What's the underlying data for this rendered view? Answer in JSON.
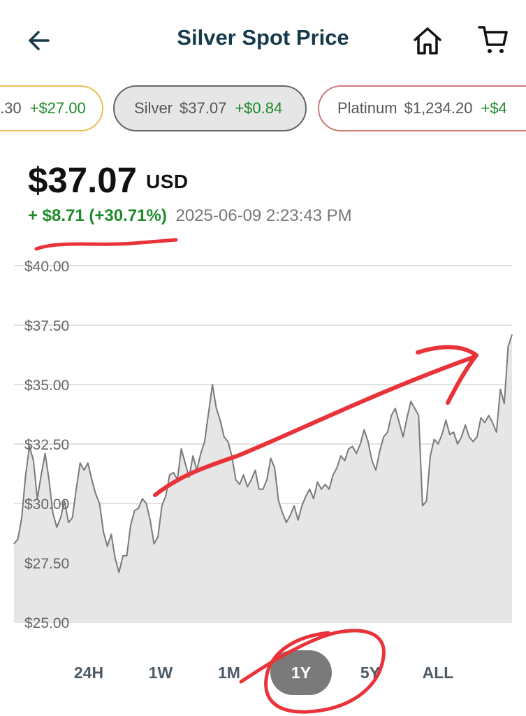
{
  "header": {
    "title": "Silver Spot Price",
    "back_icon": "arrow-left-icon",
    "home_icon": "home-icon",
    "cart_icon": "shopping-cart-icon"
  },
  "chips": [
    {
      "metal": "",
      "price": ".30",
      "change": "+$27.00",
      "border_color": "#e9c055"
    },
    {
      "metal": "Silver",
      "price": "$37.07",
      "change": "+$0.84",
      "border_color": "#666666",
      "selected": true
    },
    {
      "metal": "Platinum",
      "price": "$1,234.20",
      "change": "+$4",
      "border_color": "#c97b78"
    }
  ],
  "quote": {
    "price": "$37.07",
    "currency": "USD",
    "change_abs": "+ $8.71",
    "change_pct": "(+30.71%)",
    "timestamp": "2025-06-09 2:23:43 PM"
  },
  "colors": {
    "positive": "#1f8a2b",
    "title": "#173a4a",
    "chart_line": "#7a7a7a",
    "chart_fill": "#e6e6e6",
    "annotation": "#e8333a"
  },
  "range_tabs": [
    {
      "label": "24H",
      "active": false
    },
    {
      "label": "1W",
      "active": false
    },
    {
      "label": "1M",
      "active": false
    },
    {
      "label": "1Y",
      "active": true
    },
    {
      "label": "5Y",
      "active": false
    },
    {
      "label": "ALL",
      "active": false
    }
  ],
  "chart_data": {
    "type": "area",
    "ylim": [
      25,
      40
    ],
    "yticks": [
      "$25.00",
      "$27.50",
      "$30.00",
      "$32.50",
      "$35.00",
      "$37.50",
      "$40.00"
    ],
    "ytick_values": [
      25,
      27.5,
      30,
      32.5,
      35,
      37.5,
      40
    ],
    "grid": true,
    "series": [
      {
        "values": [
          28.3,
          28.5,
          29.4,
          31.2,
          32.4,
          31.8,
          30.2,
          31.2,
          32.1,
          31.0,
          29.6,
          29.0,
          29.4,
          30.1,
          29.2,
          29.4,
          30.6,
          31.7,
          31.4,
          31.7,
          31.0,
          30.4,
          30.0,
          28.8,
          28.2,
          28.7,
          27.7,
          27.1,
          27.8,
          27.8,
          29.1,
          29.7,
          29.8,
          30.2,
          30.0,
          29.3,
          28.3,
          28.6,
          29.9,
          30.3,
          31.2,
          31.3,
          31.0,
          32.3,
          31.7,
          31.1,
          32.0,
          31.4,
          32.1,
          32.6,
          33.8,
          35.0,
          34.0,
          33.5,
          32.8,
          32.6,
          32.0,
          31.0,
          30.8,
          31.2,
          30.7,
          31.0,
          31.4,
          30.6,
          30.6,
          31.0,
          31.9,
          31.5,
          30.1,
          29.6,
          29.2,
          29.5,
          29.9,
          29.3,
          29.9,
          30.3,
          30.6,
          30.2,
          30.9,
          30.6,
          30.8,
          30.6,
          31.2,
          31.5,
          32.0,
          31.8,
          32.3,
          32.4,
          32.1,
          32.5,
          33.1,
          32.6,
          31.8,
          31.4,
          32.2,
          32.8,
          33.0,
          33.7,
          34.0,
          33.4,
          32.8,
          33.6,
          34.3,
          34.0,
          33.7,
          29.9,
          30.1,
          32.0,
          32.7,
          32.5,
          32.9,
          33.5,
          32.9,
          33.0,
          32.5,
          32.8,
          33.3,
          32.8,
          32.6,
          32.8,
          33.6,
          33.4,
          33.7,
          33.4,
          33.0,
          34.8,
          34.2,
          36.6,
          37.1
        ]
      }
    ]
  }
}
